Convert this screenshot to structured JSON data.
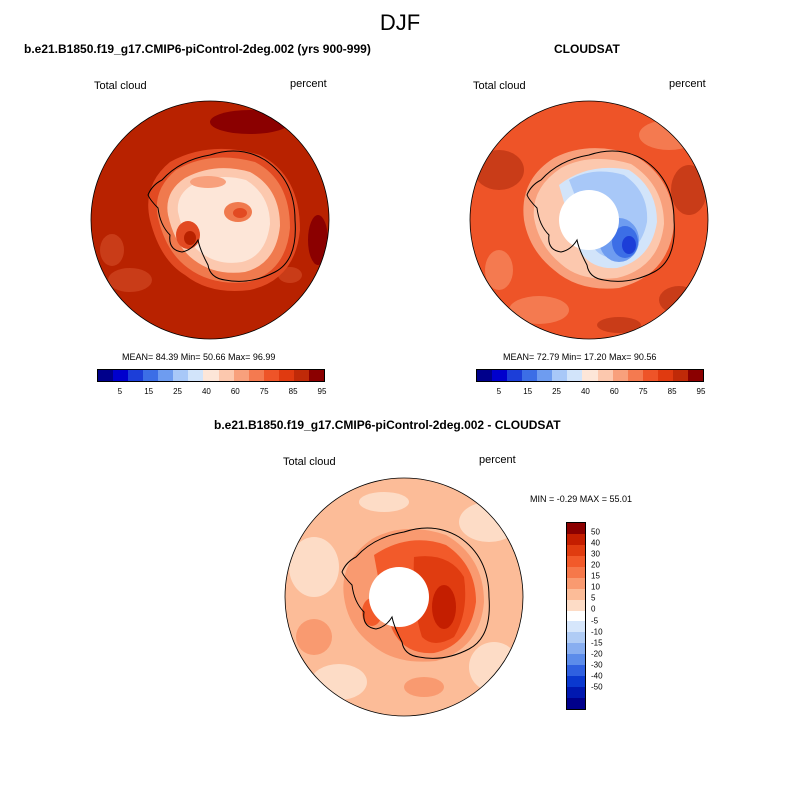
{
  "season": "DJF",
  "panels": [
    {
      "title": "b.e21.B1850.f19_g17.CMIP6-piControl-2deg.002 (yrs 900-999)",
      "variable": "Total cloud",
      "units": "percent",
      "stats_text": "MEAN=  84.39  Min=  50.66  Max=  96.99"
    },
    {
      "title": "CLOUDSAT",
      "variable": "Total cloud",
      "units": "percent",
      "stats_text": "MEAN=  72.79  Min=  17.20  Max=  90.56"
    },
    {
      "title": "b.e21.B1850.f19_g17.CMIP6-piControl-2deg.002 - CLOUDSAT",
      "variable": "Total cloud",
      "units": "percent",
      "stats_text": "MIN =  -0.29 MAX =  55.01"
    }
  ],
  "colorbar_abs": {
    "colors": [
      "#00008b",
      "#0000cd",
      "#1c3ed8",
      "#3c6ee6",
      "#6e9cf0",
      "#a8c8f8",
      "#d2e4fa",
      "#fde6d8",
      "#fcc8ae",
      "#f8a07c",
      "#f47a50",
      "#ee5428",
      "#e03a10",
      "#c02a08",
      "#8b0000"
    ],
    "tick_labels": [
      "5",
      "15",
      "25",
      "40",
      "60",
      "75",
      "85",
      "95"
    ]
  },
  "colorbar_diff": {
    "colors": [
      "#8b0000",
      "#c41e00",
      "#e03c10",
      "#f25a2a",
      "#f6784a",
      "#f99a70",
      "#fcbc98",
      "#fddcc6",
      "#ffffff",
      "#d6e6fb",
      "#b0ccf5",
      "#88aef0",
      "#5c8cea",
      "#2f60e0",
      "#0a38cf",
      "#0018b0",
      "#00008b"
    ],
    "tick_labels": [
      "50",
      "40",
      "30",
      "20",
      "15",
      "10",
      "5",
      "0",
      "-5",
      "-10",
      "-15",
      "-20",
      "-30",
      "-40",
      "-50"
    ]
  },
  "chart_data": [
    {
      "type": "heatmap",
      "projection": "south-polar-stereographic",
      "title": "b.e21.B1850.f19_g17.CMIP6-piControl-2deg.002 (yrs 900-999)",
      "variable": "Total cloud",
      "units": "percent",
      "mean": 84.39,
      "min": 50.66,
      "max": 96.99,
      "contour_levels": [
        5,
        10,
        15,
        20,
        25,
        30,
        40,
        50,
        60,
        70,
        75,
        80,
        85,
        90,
        95
      ]
    },
    {
      "type": "heatmap",
      "projection": "south-polar-stereographic",
      "title": "CLOUDSAT",
      "variable": "Total cloud",
      "units": "percent",
      "mean": 72.79,
      "min": 17.2,
      "max": 90.56,
      "contour_levels": [
        5,
        10,
        15,
        20,
        25,
        30,
        40,
        50,
        60,
        70,
        75,
        80,
        85,
        90,
        95
      ]
    },
    {
      "type": "heatmap",
      "projection": "south-polar-stereographic",
      "title": "b.e21.B1850.f19_g17.CMIP6-piControl-2deg.002 - CLOUDSAT",
      "variable": "Total cloud",
      "units": "percent",
      "min": -0.29,
      "max": 55.01,
      "contour_levels": [
        -50,
        -40,
        -30,
        -20,
        -15,
        -10,
        -5,
        0,
        5,
        10,
        15,
        20,
        30,
        40,
        50
      ]
    }
  ]
}
